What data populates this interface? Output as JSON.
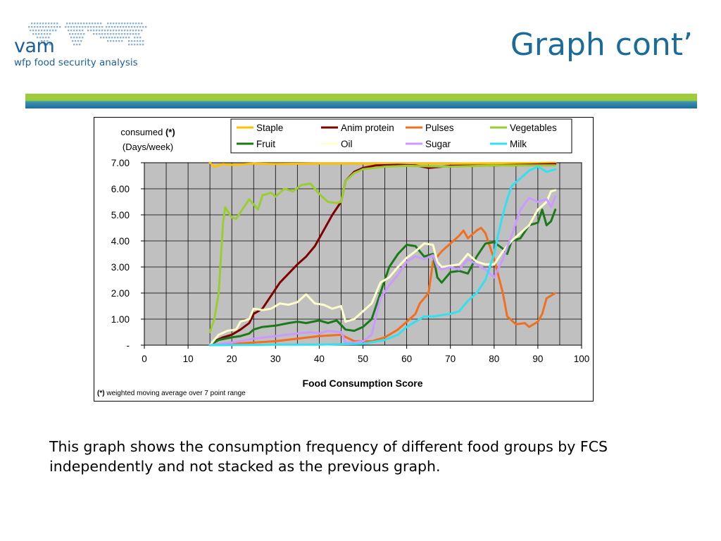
{
  "logo": {
    "brand": "vam",
    "subtitle": "wfp food security analysis",
    "map_color": "#8fb4d6",
    "text_color": "#1a5e9e"
  },
  "header": {
    "title": "Graph cont’"
  },
  "banner": {
    "top_color": "#9ccc3a",
    "bottom_color": "#1f6d9a"
  },
  "chart_data": {
    "type": "line",
    "title": "",
    "ylabel_line1": "consumed (*)",
    "ylabel_line2": "(Days/week)",
    "xlabel": "Food Consumption Score",
    "footnote": "(*) weighted moving average over 7 point range",
    "xlim": [
      0,
      100
    ],
    "ylim": [
      0,
      7
    ],
    "x_ticks": [
      0,
      10,
      20,
      30,
      40,
      50,
      60,
      70,
      80,
      90,
      100
    ],
    "y_tick_labels": [
      "-",
      "1.00",
      "2.00",
      "3.00",
      "4.00",
      "5.00",
      "6.00",
      "7.00"
    ],
    "grid": true,
    "plot_background": "#c0c0c0",
    "legend_position": "top",
    "series": [
      {
        "name": "Staple",
        "color": "#ffc000",
        "points": [
          [
            15,
            7
          ],
          [
            16,
            6.85
          ],
          [
            18,
            6.95
          ],
          [
            20,
            6.92
          ],
          [
            25,
            6.97
          ],
          [
            30,
            6.95
          ],
          [
            40,
            6.97
          ],
          [
            50,
            6.97
          ],
          [
            60,
            6.97
          ],
          [
            70,
            6.97
          ],
          [
            80,
            6.98
          ],
          [
            90,
            6.99
          ],
          [
            94,
            7.0
          ]
        ]
      },
      {
        "name": "Anim protein",
        "color": "#800000",
        "points": [
          [
            15,
            0
          ],
          [
            16,
            0.15
          ],
          [
            18,
            0.3
          ],
          [
            20,
            0.4
          ],
          [
            22,
            0.6
          ],
          [
            24,
            0.85
          ],
          [
            25,
            1.2
          ],
          [
            27,
            1.4
          ],
          [
            29,
            1.9
          ],
          [
            31,
            2.4
          ],
          [
            33,
            2.75
          ],
          [
            35,
            3.1
          ],
          [
            37,
            3.4
          ],
          [
            39,
            3.8
          ],
          [
            41,
            4.4
          ],
          [
            43,
            5.0
          ],
          [
            45,
            5.5
          ],
          [
            46,
            6.3
          ],
          [
            48,
            6.65
          ],
          [
            50,
            6.8
          ],
          [
            53,
            6.9
          ],
          [
            58,
            6.92
          ],
          [
            62,
            6.9
          ],
          [
            65,
            6.8
          ],
          [
            70,
            6.88
          ],
          [
            80,
            6.9
          ],
          [
            94,
            6.95
          ]
        ]
      },
      {
        "name": "Pulses",
        "color": "#f07020",
        "points": [
          [
            15,
            0
          ],
          [
            20,
            0.05
          ],
          [
            25,
            0.1
          ],
          [
            30,
            0.15
          ],
          [
            35,
            0.25
          ],
          [
            40,
            0.35
          ],
          [
            45,
            0.4
          ],
          [
            48,
            0.15
          ],
          [
            52,
            0.15
          ],
          [
            55,
            0.3
          ],
          [
            58,
            0.6
          ],
          [
            60,
            0.9
          ],
          [
            62,
            1.2
          ],
          [
            63,
            1.6
          ],
          [
            65,
            2.0
          ],
          [
            66,
            3.2
          ],
          [
            68,
            3.6
          ],
          [
            70,
            3.9
          ],
          [
            72,
            4.2
          ],
          [
            73,
            4.4
          ],
          [
            74,
            4.1
          ],
          [
            76,
            4.4
          ],
          [
            77,
            4.5
          ],
          [
            78,
            4.3
          ],
          [
            80,
            3.3
          ],
          [
            82,
            2.0
          ],
          [
            83,
            1.1
          ],
          [
            85,
            0.8
          ],
          [
            87,
            0.85
          ],
          [
            88,
            0.7
          ],
          [
            90,
            0.9
          ],
          [
            91,
            1.2
          ],
          [
            92,
            1.8
          ],
          [
            94,
            2.0
          ]
        ]
      },
      {
        "name": "Vegetables",
        "color": "#9acd32",
        "points": [
          [
            15,
            0.5
          ],
          [
            16,
            1.0
          ],
          [
            17,
            2.0
          ],
          [
            18,
            4.7
          ],
          [
            18.5,
            5.3
          ],
          [
            19,
            5.15
          ],
          [
            20,
            4.9
          ],
          [
            21,
            4.85
          ],
          [
            22,
            5.1
          ],
          [
            24,
            5.6
          ],
          [
            25,
            5.4
          ],
          [
            26,
            5.2
          ],
          [
            27,
            5.75
          ],
          [
            29,
            5.85
          ],
          [
            30,
            5.7
          ],
          [
            32,
            6.0
          ],
          [
            34,
            5.9
          ],
          [
            36,
            6.15
          ],
          [
            38,
            6.2
          ],
          [
            40,
            5.8
          ],
          [
            42,
            5.5
          ],
          [
            44,
            5.45
          ],
          [
            45,
            5.5
          ],
          [
            46,
            6.3
          ],
          [
            48,
            6.6
          ],
          [
            50,
            6.75
          ],
          [
            55,
            6.85
          ],
          [
            60,
            6.88
          ],
          [
            70,
            6.85
          ],
          [
            80,
            6.9
          ],
          [
            94,
            6.9
          ]
        ]
      },
      {
        "name": "Fruit",
        "color": "#1a7a1a",
        "points": [
          [
            15,
            0
          ],
          [
            17,
            0.2
          ],
          [
            20,
            0.3
          ],
          [
            22,
            0.35
          ],
          [
            24,
            0.45
          ],
          [
            25,
            0.6
          ],
          [
            27,
            0.7
          ],
          [
            30,
            0.75
          ],
          [
            33,
            0.85
          ],
          [
            35,
            0.9
          ],
          [
            37,
            0.85
          ],
          [
            40,
            0.95
          ],
          [
            42,
            0.85
          ],
          [
            44,
            0.95
          ],
          [
            46,
            0.6
          ],
          [
            48,
            0.55
          ],
          [
            50,
            0.7
          ],
          [
            52,
            1.0
          ],
          [
            54,
            2.0
          ],
          [
            56,
            3.0
          ],
          [
            58,
            3.5
          ],
          [
            60,
            3.85
          ],
          [
            62,
            3.8
          ],
          [
            64,
            3.4
          ],
          [
            66,
            3.5
          ],
          [
            67,
            2.6
          ],
          [
            68,
            2.4
          ],
          [
            70,
            2.8
          ],
          [
            72,
            2.85
          ],
          [
            74,
            2.75
          ],
          [
            76,
            3.4
          ],
          [
            78,
            3.9
          ],
          [
            80,
            3.95
          ],
          [
            82,
            3.7
          ],
          [
            83,
            3.5
          ],
          [
            84,
            4.0
          ],
          [
            86,
            4.1
          ],
          [
            88,
            4.6
          ],
          [
            90,
            4.7
          ],
          [
            91,
            5.2
          ],
          [
            92,
            4.6
          ],
          [
            93,
            4.75
          ],
          [
            94,
            5.2
          ]
        ]
      },
      {
        "name": "Oil",
        "color": "#ffffcc",
        "points": [
          [
            15,
            0
          ],
          [
            17,
            0.4
          ],
          [
            19,
            0.55
          ],
          [
            21,
            0.6
          ],
          [
            22,
            0.9
          ],
          [
            24,
            1.0
          ],
          [
            25,
            1.4
          ],
          [
            27,
            1.35
          ],
          [
            29,
            1.4
          ],
          [
            31,
            1.6
          ],
          [
            33,
            1.55
          ],
          [
            35,
            1.65
          ],
          [
            37,
            1.95
          ],
          [
            39,
            1.6
          ],
          [
            41,
            1.55
          ],
          [
            43,
            1.4
          ],
          [
            45,
            1.5
          ],
          [
            46,
            0.9
          ],
          [
            48,
            1.0
          ],
          [
            50,
            1.3
          ],
          [
            52,
            1.6
          ],
          [
            54,
            2.4
          ],
          [
            56,
            2.6
          ],
          [
            58,
            3.0
          ],
          [
            60,
            3.35
          ],
          [
            62,
            3.6
          ],
          [
            64,
            3.9
          ],
          [
            66,
            3.85
          ],
          [
            67,
            3.2
          ],
          [
            68,
            3.0
          ],
          [
            70,
            3.05
          ],
          [
            72,
            3.1
          ],
          [
            74,
            3.5
          ],
          [
            76,
            3.2
          ],
          [
            78,
            3.1
          ],
          [
            80,
            3.1
          ],
          [
            82,
            3.6
          ],
          [
            84,
            4.0
          ],
          [
            86,
            4.3
          ],
          [
            88,
            4.6
          ],
          [
            90,
            5.2
          ],
          [
            92,
            5.5
          ],
          [
            93,
            5.9
          ],
          [
            94,
            5.95
          ]
        ]
      },
      {
        "name": "Sugar",
        "color": "#cc99ff",
        "points": [
          [
            15,
            0
          ],
          [
            20,
            0.1
          ],
          [
            25,
            0.25
          ],
          [
            30,
            0.35
          ],
          [
            35,
            0.45
          ],
          [
            38,
            0.5
          ],
          [
            40,
            0.45
          ],
          [
            42,
            0.55
          ],
          [
            45,
            0.5
          ],
          [
            46,
            0.1
          ],
          [
            48,
            0.1
          ],
          [
            50,
            0.15
          ],
          [
            52,
            0.4
          ],
          [
            54,
            1.8
          ],
          [
            56,
            2.3
          ],
          [
            58,
            2.7
          ],
          [
            60,
            3.2
          ],
          [
            62,
            3.4
          ],
          [
            64,
            3.3
          ],
          [
            66,
            3.45
          ],
          [
            67,
            3.0
          ],
          [
            68,
            2.9
          ],
          [
            70,
            3.0
          ],
          [
            72,
            2.9
          ],
          [
            74,
            3.3
          ],
          [
            76,
            3.1
          ],
          [
            78,
            2.9
          ],
          [
            80,
            2.6
          ],
          [
            82,
            3.3
          ],
          [
            84,
            4.2
          ],
          [
            86,
            5.2
          ],
          [
            88,
            5.65
          ],
          [
            90,
            5.5
          ],
          [
            92,
            5.6
          ],
          [
            93,
            5.3
          ],
          [
            94,
            5.7
          ]
        ]
      },
      {
        "name": "Milk",
        "color": "#33e0f0",
        "points": [
          [
            15,
            0
          ],
          [
            30,
            0.02
          ],
          [
            40,
            0.02
          ],
          [
            50,
            0.05
          ],
          [
            55,
            0.2
          ],
          [
            58,
            0.4
          ],
          [
            60,
            0.7
          ],
          [
            62,
            0.9
          ],
          [
            64,
            1.1
          ],
          [
            66,
            1.1
          ],
          [
            68,
            1.15
          ],
          [
            70,
            1.2
          ],
          [
            72,
            1.3
          ],
          [
            74,
            1.7
          ],
          [
            76,
            2.0
          ],
          [
            78,
            2.5
          ],
          [
            80,
            3.5
          ],
          [
            81,
            4.3
          ],
          [
            82,
            5.0
          ],
          [
            83,
            5.6
          ],
          [
            84,
            6.1
          ],
          [
            86,
            6.4
          ],
          [
            88,
            6.7
          ],
          [
            90,
            6.85
          ],
          [
            92,
            6.65
          ],
          [
            94,
            6.75
          ]
        ]
      }
    ]
  },
  "caption": {
    "text": "This graph shows the consumption frequency of different food groups by FCS independently and not stacked as the previous graph."
  }
}
